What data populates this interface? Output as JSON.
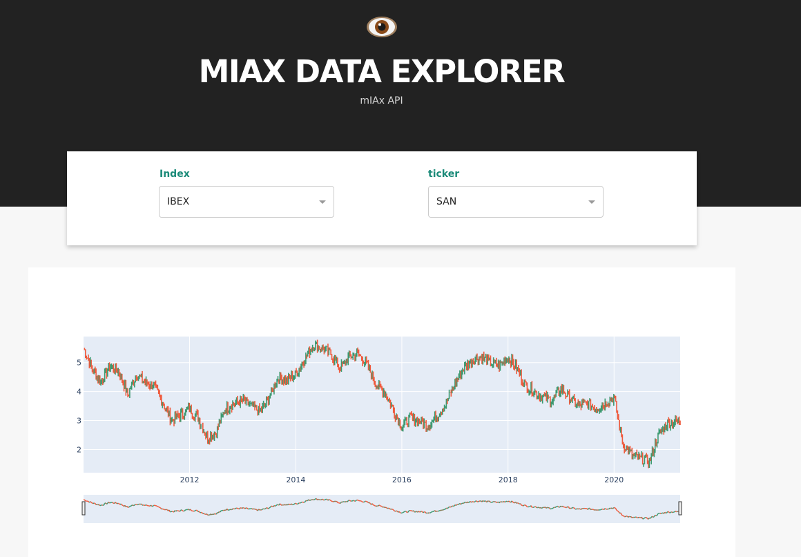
{
  "header": {
    "title": "MIAX DATA EXPLORER",
    "subtitle": "mIAx API",
    "logo_icon": "eye-icon"
  },
  "controls": {
    "index_label": "Index",
    "index_value": "IBEX",
    "ticker_label": "ticker",
    "ticker_value": "SAN"
  },
  "colors": {
    "accent": "#1a8a78",
    "increasing": "#3d9970",
    "decreasing": "#ef5a3c",
    "plot_bg": "#e5ecf6",
    "header_bg": "#222222"
  },
  "chart_data": {
    "type": "line",
    "subtype": "candlestick",
    "title": "",
    "xlabel": "",
    "ylabel": "",
    "xlim": [
      "2010-01-01",
      "2021-03-31"
    ],
    "ylim": [
      1.2,
      5.9
    ],
    "x_ticks": [
      "2012",
      "2014",
      "2016",
      "2018",
      "2020"
    ],
    "y_ticks": [
      2,
      3,
      4,
      5
    ],
    "grid": true,
    "legend": "none",
    "rangeslider": true,
    "series": [
      {
        "x": [
          "2010-01-01",
          "2010-03-01",
          "2010-05-01",
          "2010-07-01",
          "2010-09-01",
          "2010-11-01",
          "2011-01-01",
          "2011-03-01",
          "2011-05-01",
          "2011-07-01",
          "2011-09-01",
          "2011-11-01",
          "2012-01-01",
          "2012-03-01",
          "2012-05-01",
          "2012-07-01",
          "2012-09-01",
          "2012-11-01",
          "2013-01-01",
          "2013-03-01",
          "2013-05-01",
          "2013-07-01",
          "2013-09-01",
          "2013-11-01",
          "2014-01-01",
          "2014-03-01",
          "2014-05-01",
          "2014-07-01",
          "2014-09-01",
          "2014-11-01",
          "2015-01-01",
          "2015-03-01",
          "2015-05-01",
          "2015-07-01",
          "2015-09-01",
          "2015-11-01",
          "2016-01-01",
          "2016-03-01",
          "2016-05-01",
          "2016-07-01",
          "2016-09-01",
          "2016-11-01",
          "2017-01-01",
          "2017-03-01",
          "2017-05-01",
          "2017-07-01",
          "2017-09-01",
          "2017-11-01",
          "2018-01-01",
          "2018-03-01",
          "2018-05-01",
          "2018-07-01",
          "2018-09-01",
          "2018-11-01",
          "2019-01-01",
          "2019-03-01",
          "2019-05-01",
          "2019-07-01",
          "2019-09-01",
          "2019-11-01",
          "2020-01-01",
          "2020-03-01",
          "2020-05-01",
          "2020-07-01",
          "2020-09-01",
          "2020-11-01",
          "2021-01-01",
          "2021-03-31"
        ],
        "values": [
          5.5,
          4.8,
          4.3,
          4.9,
          4.7,
          3.9,
          4.6,
          4.3,
          4.2,
          3.6,
          3.0,
          3.2,
          3.4,
          3.1,
          2.4,
          2.6,
          3.4,
          3.6,
          3.7,
          3.5,
          3.3,
          3.8,
          4.5,
          4.4,
          4.6,
          5.1,
          5.6,
          5.5,
          5.3,
          4.8,
          5.2,
          5.3,
          5.0,
          4.3,
          4.0,
          3.4,
          2.8,
          3.1,
          3.0,
          2.8,
          3.2,
          3.6,
          4.3,
          4.8,
          5.1,
          5.2,
          5.0,
          4.9,
          5.2,
          4.8,
          4.2,
          4.0,
          3.8,
          3.7,
          4.1,
          3.8,
          3.5,
          3.6,
          3.4,
          3.6,
          3.8,
          2.2,
          1.8,
          1.7,
          1.6,
          2.5,
          2.9,
          3.0
        ]
      }
    ]
  }
}
